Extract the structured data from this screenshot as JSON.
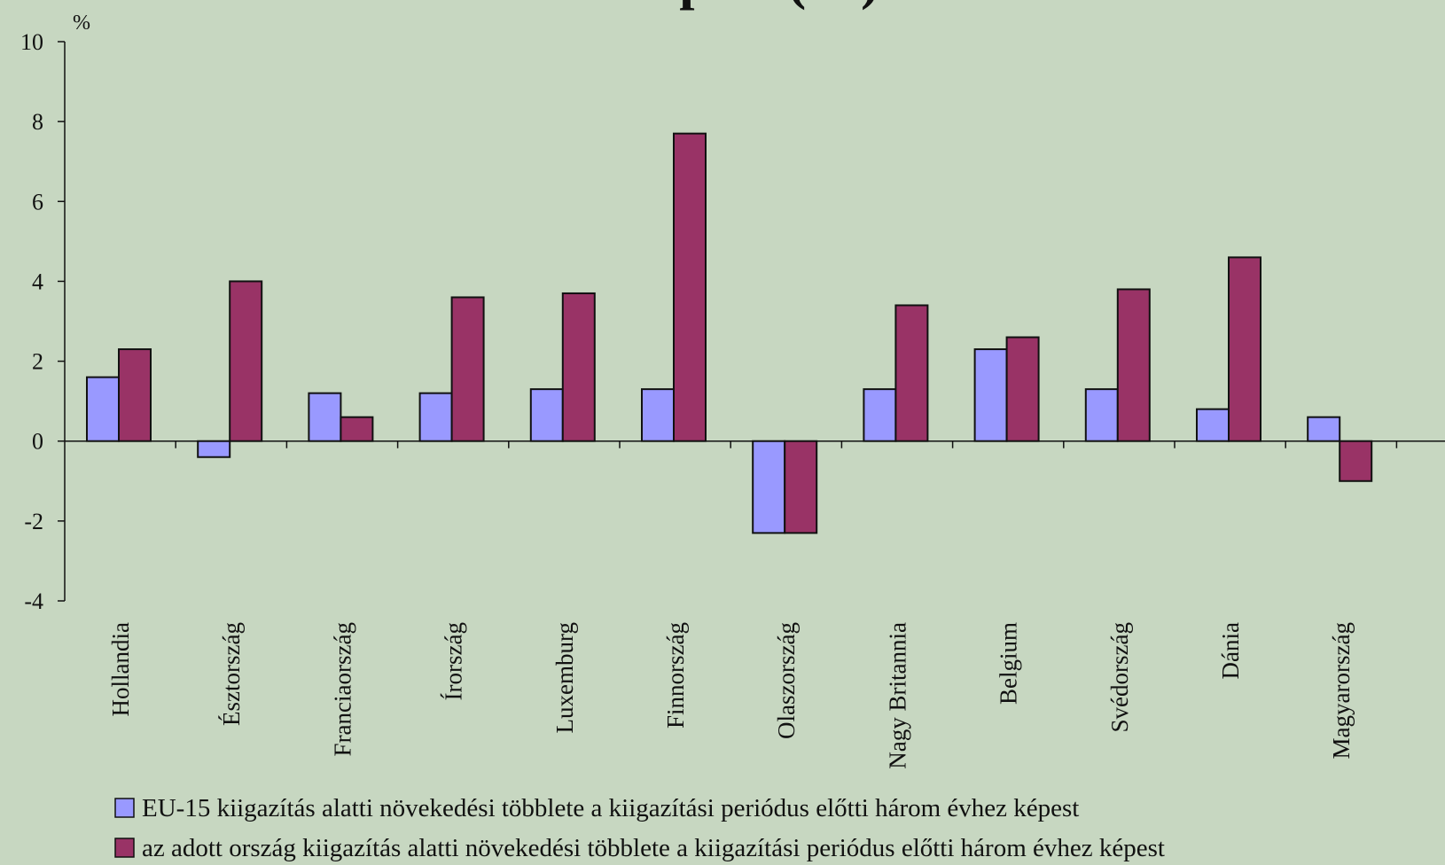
{
  "chart_data": {
    "type": "bar",
    "title": "képest (%)",
    "y_label": "%",
    "categories": [
      "Hollandia",
      "Észtország",
      "Franciaország",
      "Írország",
      "Luxemburg",
      "Finnország",
      "Olaszország",
      "Nagy Britannia",
      "Belgium",
      "Svédország",
      "Dánia",
      "Magyarország"
    ],
    "series": [
      {
        "name": "EU-15 kiigazítás alatti növekedési többlete a kiigazítási periódus előtti három évhez képest",
        "color": "#9999ff",
        "values": [
          1.6,
          -0.4,
          1.2,
          1.2,
          1.3,
          1.3,
          -2.3,
          1.3,
          2.3,
          1.3,
          0.8,
          0.6
        ]
      },
      {
        "name": "az adott ország kiigazítás alatti növekedési többlete a kiigazítási periódus előtti három évhez képest",
        "color": "#993366",
        "values": [
          2.3,
          4.0,
          0.6,
          3.6,
          3.7,
          7.7,
          -2.3,
          3.4,
          2.6,
          3.8,
          4.6,
          -1.0
        ]
      }
    ],
    "ylim": [
      -4,
      10
    ],
    "yticks": [
      -4,
      -2,
      0,
      2,
      4,
      6,
      8,
      10
    ],
    "grid": false,
    "legend": "bottom"
  }
}
